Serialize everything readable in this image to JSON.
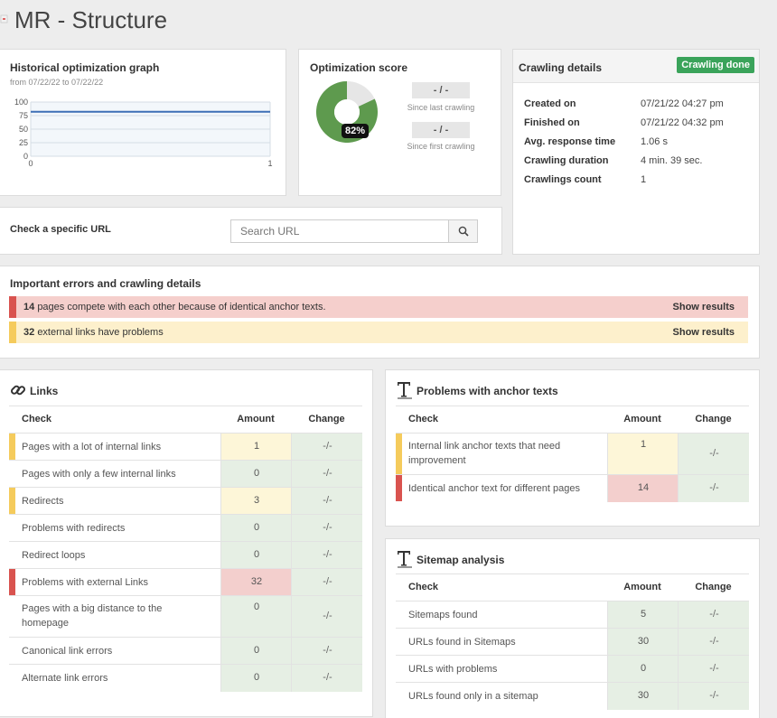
{
  "header": {
    "title": "MR - Structure"
  },
  "colors": {
    "yellow": "#f5cb5c",
    "red": "#d9534f",
    "green": "#3aa35a",
    "cell_green": "#e6efe4",
    "cell_yellow": "#fdf6d8",
    "cell_red": "#f3cfcd",
    "alert_red": "#f5cfcc",
    "alert_yellow": "#fdf0cc",
    "donut": "#5e9a4e"
  },
  "graph": {
    "title": "Historical optimization graph",
    "range": "from 07/22/22 to 07/22/22",
    "y_ticks": [
      "100",
      "75",
      "50",
      "25",
      "0"
    ],
    "x_ticks": [
      "0",
      "1"
    ]
  },
  "chart_data": {
    "type": "line",
    "x": [
      0,
      1
    ],
    "series": [
      {
        "values": [
          82,
          82
        ]
      }
    ],
    "ylim": [
      0,
      100
    ],
    "xlim": [
      0,
      1
    ],
    "grid": true
  },
  "score": {
    "title": "Optimization score",
    "percent_label": "82%",
    "percent": 82,
    "last_value": "- / -",
    "last_label": "Since last crawling",
    "first_value": "- / -",
    "first_label": "Since first crawling"
  },
  "crawl": {
    "title": "Crawling details",
    "badge": "Crawling done",
    "rows": [
      {
        "k": "Created on",
        "v": "07/21/22 04:27 pm"
      },
      {
        "k": "Finished on",
        "v": "07/21/22 04:32 pm"
      },
      {
        "k": "Avg. response time",
        "v": "1.06 s"
      },
      {
        "k": "Crawling duration",
        "v": "4 min. 39 sec."
      },
      {
        "k": "Crawlings count",
        "v": "1"
      }
    ]
  },
  "search": {
    "label": "Check a specific URL",
    "placeholder": "Search URL",
    "icon": "magnifier"
  },
  "errors": {
    "title": "Important errors and crawling details",
    "items": [
      {
        "count": "14",
        "text": "pages compete with each other because of identical anchor texts.",
        "action": "Show results",
        "level": "red"
      },
      {
        "count": "32",
        "text": "external links have problems",
        "action": "Show results",
        "level": "yellow"
      }
    ]
  },
  "links": {
    "title": "Links",
    "icon": "link-icon",
    "headers": {
      "check": "Check",
      "amount": "Amount",
      "change": "Change"
    },
    "rows": [
      {
        "label": "Pages with a lot of internal links",
        "amount": "1",
        "change": "-/-",
        "level": "yellow"
      },
      {
        "label": "Pages with only a few internal links",
        "amount": "0",
        "change": "-/-",
        "level": "none"
      },
      {
        "label": "Redirects",
        "amount": "3",
        "change": "-/-",
        "level": "yellow"
      },
      {
        "label": "Problems with redirects",
        "amount": "0",
        "change": "-/-",
        "level": "none"
      },
      {
        "label": "Redirect loops",
        "amount": "0",
        "change": "-/-",
        "level": "none"
      },
      {
        "label": "Problems with external Links",
        "amount": "32",
        "change": "-/-",
        "level": "red"
      },
      {
        "label": "Pages with a big distance to the homepage",
        "amount": "0",
        "change": "-/-",
        "level": "none"
      },
      {
        "label": "Canonical link errors",
        "amount": "0",
        "change": "-/-",
        "level": "none"
      },
      {
        "label": "Alternate link errors",
        "amount": "0",
        "change": "-/-",
        "level": "none"
      }
    ]
  },
  "anchor": {
    "title": "Problems with anchor texts",
    "icon": "text-icon",
    "headers": {
      "check": "Check",
      "amount": "Amount",
      "change": "Change"
    },
    "rows": [
      {
        "label": "Internal link anchor texts that need improvement",
        "amount": "1",
        "change": "-/-",
        "level": "yellow"
      },
      {
        "label": "Identical anchor text for different pages",
        "amount": "14",
        "change": "-/-",
        "level": "red"
      }
    ]
  },
  "sitemap": {
    "title": "Sitemap analysis",
    "icon": "text-icon",
    "headers": {
      "check": "Check",
      "amount": "Amount",
      "change": "Change"
    },
    "rows": [
      {
        "label": "Sitemaps found",
        "amount": "5",
        "change": "-/-",
        "level": "none"
      },
      {
        "label": "URLs found in Sitemaps",
        "amount": "30",
        "change": "-/-",
        "level": "none"
      },
      {
        "label": "URLs with problems",
        "amount": "0",
        "change": "-/-",
        "level": "none"
      },
      {
        "label": "URLs found only in a sitemap",
        "amount": "30",
        "change": "-/-",
        "level": "none"
      }
    ]
  }
}
